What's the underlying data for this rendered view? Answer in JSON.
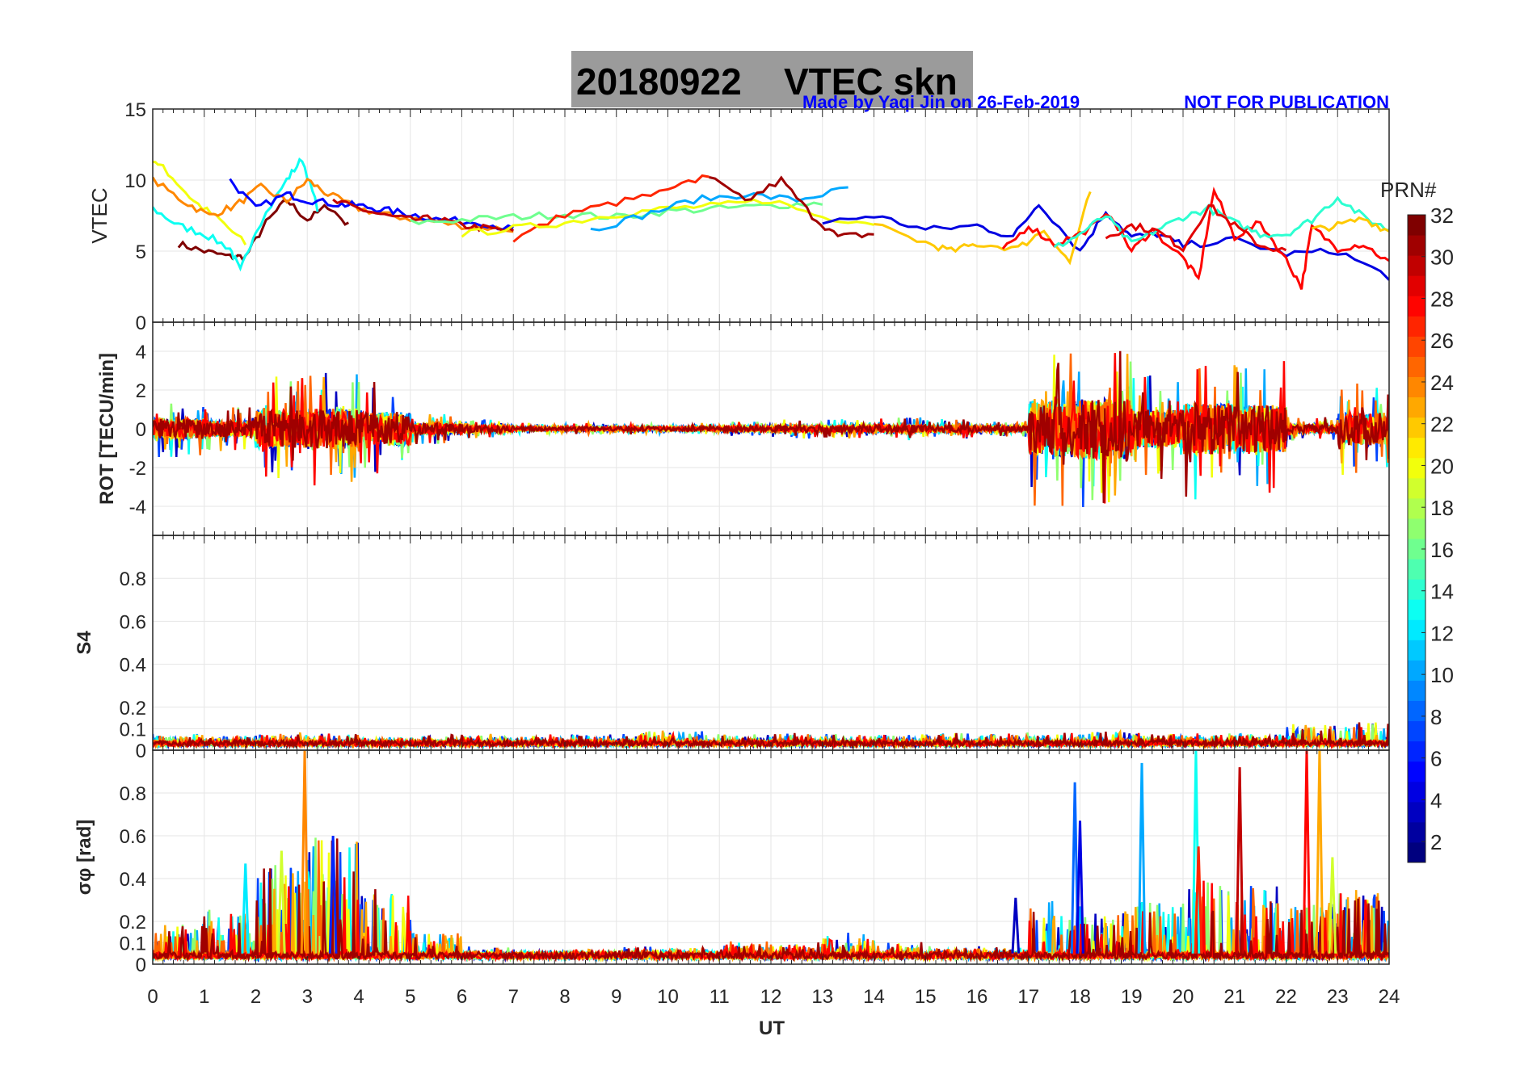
{
  "title": {
    "date": "20180922",
    "text": "VTEC  skn"
  },
  "credit": {
    "made_by": "Made by Yaqi Jin on 26-Feb-2019",
    "notice": "NOT FOR PUBLICATION"
  },
  "colorbar": {
    "label": "PRN#",
    "range": [
      1,
      32
    ],
    "ticks": [
      "2",
      "4",
      "6",
      "8",
      "10",
      "12",
      "14",
      "16",
      "18",
      "20",
      "22",
      "24",
      "26",
      "28",
      "30",
      "32"
    ],
    "colormap": "jet"
  },
  "chart_data": [
    {
      "type": "line",
      "ylabel": "VTEC",
      "xlim": [
        0,
        24
      ],
      "ylim": [
        0,
        15
      ],
      "yticks": [
        "0",
        "5",
        "10",
        "15"
      ],
      "series": [
        {
          "prn": 32,
          "x": [
            0.5,
            1,
            1.5,
            1.8,
            2.2,
            2.6,
            3,
            3.4,
            3.8
          ],
          "y": [
            5.5,
            5,
            4.6,
            4.6,
            7,
            8.6,
            7.2,
            8.2,
            6.8
          ]
        },
        {
          "prn": 20,
          "x": [
            0,
            0.3,
            0.8,
            1.3,
            1.8
          ],
          "y": [
            11.5,
            10.5,
            8.5,
            7.2,
            5.5
          ]
        },
        {
          "prn": 13,
          "x": [
            0,
            0.5,
            1,
            1.5,
            1.7,
            2,
            2.6,
            2.9,
            3.2
          ],
          "y": [
            8,
            6.8,
            6.2,
            5.2,
            3.6,
            6.5,
            10,
            11.5,
            8
          ]
        },
        {
          "prn": 24,
          "x": [
            0,
            0.6,
            1.1,
            1.6,
            2.1,
            2.6,
            3,
            3.4,
            4,
            4.6,
            5.2,
            6,
            7
          ],
          "y": [
            10,
            8.5,
            7.5,
            8.2,
            9.5,
            8.5,
            10,
            9,
            8,
            7.5,
            7.2,
            6.8,
            6.5
          ]
        },
        {
          "prn": 5,
          "x": [
            1.5,
            2,
            2.6,
            3,
            3.6,
            4,
            4.5,
            5,
            5.6,
            6.4,
            7
          ],
          "y": [
            10,
            8,
            9,
            8.6,
            8.3,
            8.2,
            7.9,
            7.6,
            7.2,
            7,
            6.5
          ]
        },
        {
          "prn": 30,
          "x": [
            3.5,
            4,
            4.5,
            5,
            5.5,
            6,
            6.5,
            7
          ],
          "y": [
            8.5,
            8,
            7.5,
            7.2,
            7.3,
            6.8,
            6.6,
            6.4
          ]
        },
        {
          "prn": 16,
          "x": [
            5,
            6,
            7,
            8,
            9,
            10,
            11,
            12,
            13
          ],
          "y": [
            7,
            7.2,
            7.4,
            7.6,
            7.4,
            7.8,
            8,
            8.2,
            8.4
          ]
        },
        {
          "prn": 27,
          "x": [
            7,
            8,
            9,
            10,
            10.8
          ],
          "y": [
            5.8,
            7.6,
            8.4,
            9.2,
            10.4
          ]
        },
        {
          "prn": 20,
          "x": [
            6,
            7,
            8,
            9,
            10,
            11,
            12,
            13,
            14
          ],
          "y": [
            6.2,
            6.6,
            7,
            7.6,
            8,
            8.2,
            8.6,
            7.4,
            7
          ]
        },
        {
          "prn": 10,
          "x": [
            8.5,
            9.5,
            10.5,
            11.5,
            12.5,
            13.5
          ],
          "y": [
            6.5,
            7.5,
            8.6,
            9,
            8.6,
            9.4
          ]
        },
        {
          "prn": 31,
          "x": [
            10.8,
            11.5,
            12.2,
            12.8,
            13.3,
            14
          ],
          "y": [
            10.2,
            8.5,
            10,
            7.5,
            6,
            6.2
          ]
        },
        {
          "prn": 4,
          "x": [
            13,
            14,
            15,
            16,
            16.7,
            17.2,
            18,
            18.5,
            19,
            19.5,
            20,
            21,
            22,
            23,
            24
          ],
          "y": [
            7,
            7.5,
            6.5,
            6.8,
            6,
            8.4,
            5,
            7.8,
            6,
            6.2,
            5.4,
            5.8,
            4.8,
            5,
            3.2
          ]
        },
        {
          "prn": 22,
          "x": [
            14,
            15,
            15.5,
            16,
            16.8,
            17.3,
            17.8,
            18.2
          ],
          "y": [
            6.8,
            5.6,
            5,
            5.5,
            5.2,
            6.5,
            4.2,
            9.2
          ]
        },
        {
          "prn": 28,
          "x": [
            16.5,
            17,
            17.5,
            18,
            18.6,
            19,
            19.4,
            20,
            20.3,
            20.6,
            21,
            21.5,
            22,
            22.3,
            22.5,
            23,
            23.5,
            24
          ],
          "y": [
            5,
            6.8,
            5.5,
            6.2,
            7.6,
            5,
            6.5,
            4.5,
            3,
            9.3,
            6,
            7,
            4.4,
            2.5,
            6.7,
            5.2,
            5.5,
            4.2
          ]
        },
        {
          "prn": 14,
          "x": [
            17.5,
            18,
            18.5,
            19,
            19.5,
            20,
            20.5,
            21,
            21.5,
            22,
            22.5,
            23,
            23.5,
            24
          ],
          "y": [
            5.2,
            6.2,
            7.5,
            5.5,
            6.5,
            7.4,
            8,
            7,
            6.2,
            6.2,
            7.2,
            8.8,
            7.4,
            6.5
          ]
        },
        {
          "prn": 29,
          "x": [
            18.5,
            19,
            19.5,
            20,
            20.5,
            21,
            21.5,
            22
          ],
          "y": [
            6,
            6.8,
            6.4,
            5.2,
            8.2,
            6.8,
            5.4,
            5
          ]
        },
        {
          "prn": 22,
          "x": [
            22.5,
            23,
            23.5,
            24
          ],
          "y": [
            6.5,
            6.8,
            7.3,
            6.4
          ]
        }
      ]
    },
    {
      "type": "line",
      "ylabel": "ROT [TECU/min]",
      "xlim": [
        0,
        24
      ],
      "ylim": [
        -5.5,
        5.5
      ],
      "yticks": [
        "-4",
        "-2",
        "0",
        "2",
        "4"
      ],
      "envelope_hourly_max_abs": [
        1.5,
        1.2,
        2.8,
        3.0,
        2.5,
        0.8,
        0.5,
        0.3,
        0.3,
        0.3,
        0.3,
        0.4,
        0.5,
        0.5,
        0.6,
        0.5,
        0.4,
        4.2,
        4.5,
        2.8,
        3.8,
        3.5,
        0.6,
        2.4
      ]
    },
    {
      "type": "line",
      "ylabel": "S4",
      "xlim": [
        0,
        24
      ],
      "ylim": [
        0,
        1
      ],
      "yticks": [
        "0",
        "0.1",
        "0.2",
        "0.4",
        "0.6",
        "0.8"
      ],
      "baseline": 0.04,
      "hourly_max": [
        0.08,
        0.07,
        0.08,
        0.08,
        0.06,
        0.07,
        0.08,
        0.07,
        0.08,
        0.1,
        0.09,
        0.08,
        0.08,
        0.08,
        0.08,
        0.09,
        0.08,
        0.08,
        0.09,
        0.08,
        0.08,
        0.08,
        0.12,
        0.14
      ]
    },
    {
      "type": "line",
      "ylabel": "σφ [rad]",
      "xlim": [
        0,
        24
      ],
      "ylim": [
        0,
        1
      ],
      "yticks": [
        "0",
        "0.1",
        "0.2",
        "0.4",
        "0.6",
        "0.8"
      ],
      "xlabel": "UT",
      "xticks": [
        "0",
        "1",
        "2",
        "3",
        "4",
        "5",
        "6",
        "7",
        "8",
        "9",
        "10",
        "11",
        "12",
        "13",
        "14",
        "15",
        "16",
        "17",
        "18",
        "19",
        "20",
        "21",
        "22",
        "23",
        "24"
      ],
      "baseline": 0.05,
      "hourly_max": [
        0.2,
        0.25,
        0.5,
        0.6,
        0.35,
        0.15,
        0.08,
        0.06,
        0.07,
        0.08,
        0.08,
        0.12,
        0.1,
        0.15,
        0.1,
        0.08,
        0.08,
        0.3,
        0.25,
        0.3,
        0.4,
        0.4,
        0.3,
        0.35
      ],
      "spikes": [
        {
          "x": 2.95,
          "y": 1.0,
          "prn": 24
        },
        {
          "x": 3.5,
          "y": 0.6,
          "prn": 6
        },
        {
          "x": 2.5,
          "y": 0.53,
          "prn": 19
        },
        {
          "x": 1.8,
          "y": 0.47,
          "prn": 12
        },
        {
          "x": 17.9,
          "y": 0.85,
          "prn": 8
        },
        {
          "x": 18.0,
          "y": 0.67,
          "prn": 4
        },
        {
          "x": 16.75,
          "y": 0.31,
          "prn": 3
        },
        {
          "x": 19.2,
          "y": 0.94,
          "prn": 10
        },
        {
          "x": 20.25,
          "y": 1.0,
          "prn": 13
        },
        {
          "x": 20.3,
          "y": 0.55,
          "prn": 27
        },
        {
          "x": 21.1,
          "y": 0.92,
          "prn": 30
        },
        {
          "x": 22.4,
          "y": 1.0,
          "prn": 28
        },
        {
          "x": 22.65,
          "y": 1.0,
          "prn": 23
        },
        {
          "x": 22.9,
          "y": 0.5,
          "prn": 19
        }
      ]
    }
  ]
}
